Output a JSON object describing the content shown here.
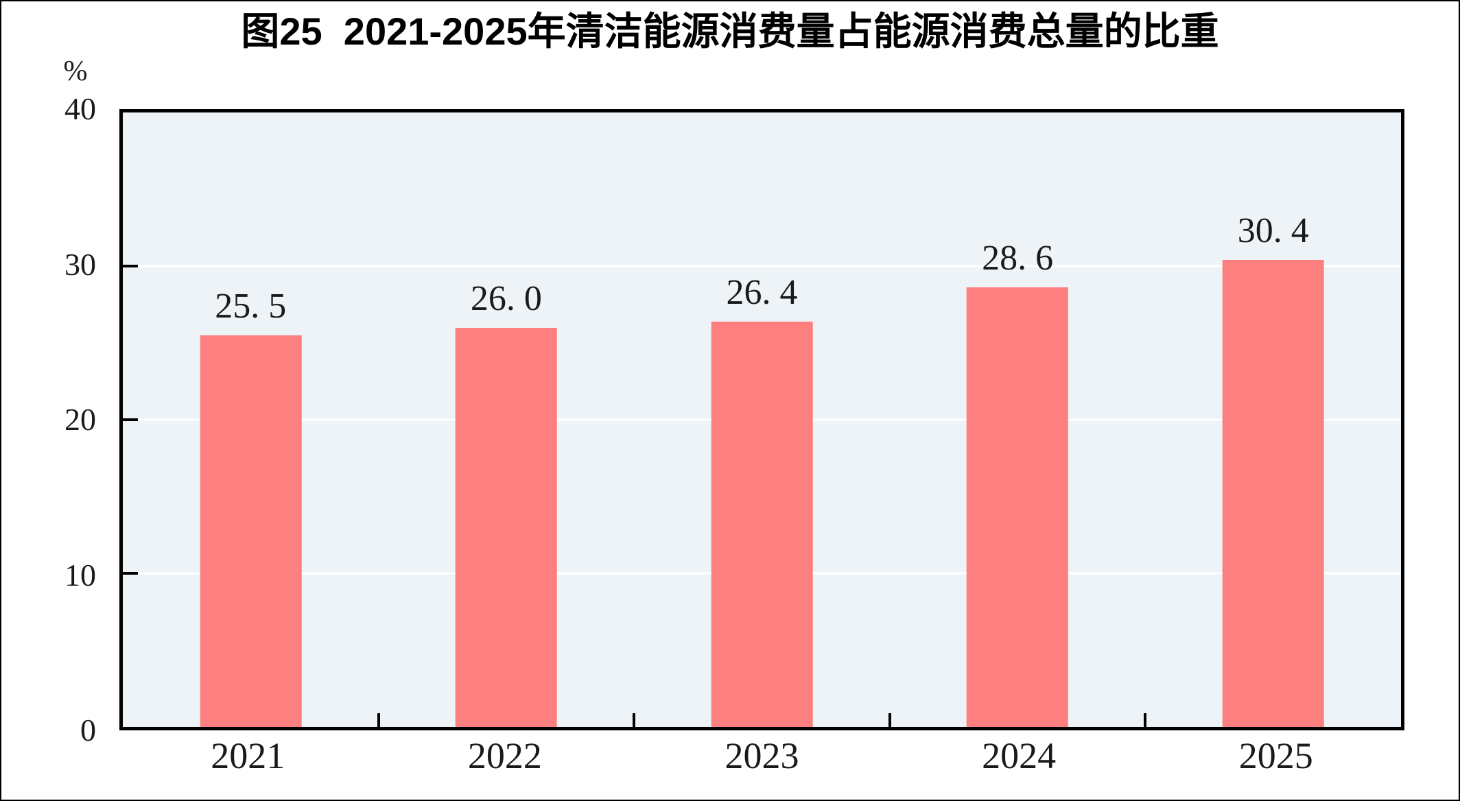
{
  "figure": {
    "background": "#ffffff",
    "outer_border_color": "#000000"
  },
  "chart_data": {
    "type": "bar",
    "title": "图25  2021-2025年清洁能源消费量占能源消费总量的比重",
    "unit_label": "%",
    "categories": [
      "2021",
      "2022",
      "2023",
      "2024",
      "2025"
    ],
    "values": [
      25.5,
      26.0,
      26.4,
      28.6,
      30.4
    ],
    "value_labels": [
      "25. 5",
      "26. 0",
      "26. 4",
      "28. 6",
      "30. 4"
    ],
    "xlabel": "",
    "ylabel": "%",
    "ylim": [
      0,
      40
    ],
    "y_ticks": [
      0,
      10,
      20,
      30,
      40
    ],
    "y_tick_labels": [
      "0",
      "10",
      "20",
      "30",
      "40"
    ],
    "grid_ticks": [
      10,
      20,
      30
    ],
    "x_boundary_ticks": [
      1,
      2,
      3,
      4
    ],
    "legend": "none",
    "grid": "horizontal",
    "colors": {
      "bar": "#fd7f80",
      "plot_background": "#edf3f6",
      "gridline": "#ffffff",
      "axis": "#000000",
      "text": "#1a1a1a"
    }
  }
}
